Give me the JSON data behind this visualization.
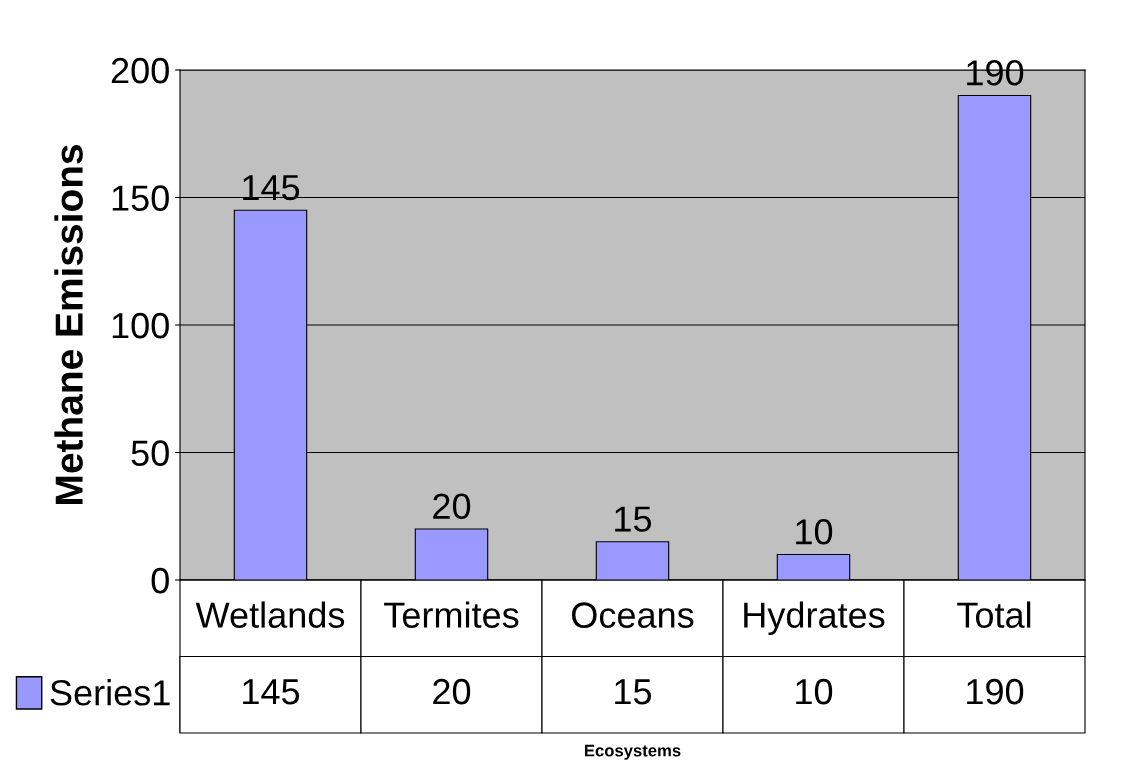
{
  "chart_data": {
    "type": "bar",
    "ylabel": "Methane Emissions",
    "annotations": [
      "Ecosystems",
      {
        "text": "145",
        "x": "Wetlands",
        "y": 145
      },
      {
        "text": "20",
        "x": "Termites",
        "y": 20
      },
      {
        "text": "15",
        "x": "Oceans",
        "y": 15
      },
      {
        "text": "10",
        "x": "Hydrates",
        "y": 10
      },
      {
        "text": "190",
        "x": "Total",
        "y": 190
      }
    ],
    "categories": [
      "Wetlands",
      "Termites",
      "Oceans",
      "Hydrates",
      "Total"
    ],
    "series": [
      {
        "name": "Series1",
        "color": "#9999ff",
        "values": [
          145,
          20,
          15,
          10,
          190
        ]
      }
    ],
    "ylim": [
      0,
      200
    ],
    "yticks": [
      0,
      50,
      100,
      150,
      200
    ],
    "grid": "y",
    "legend": "bottom left",
    "data_labels": true
  }
}
